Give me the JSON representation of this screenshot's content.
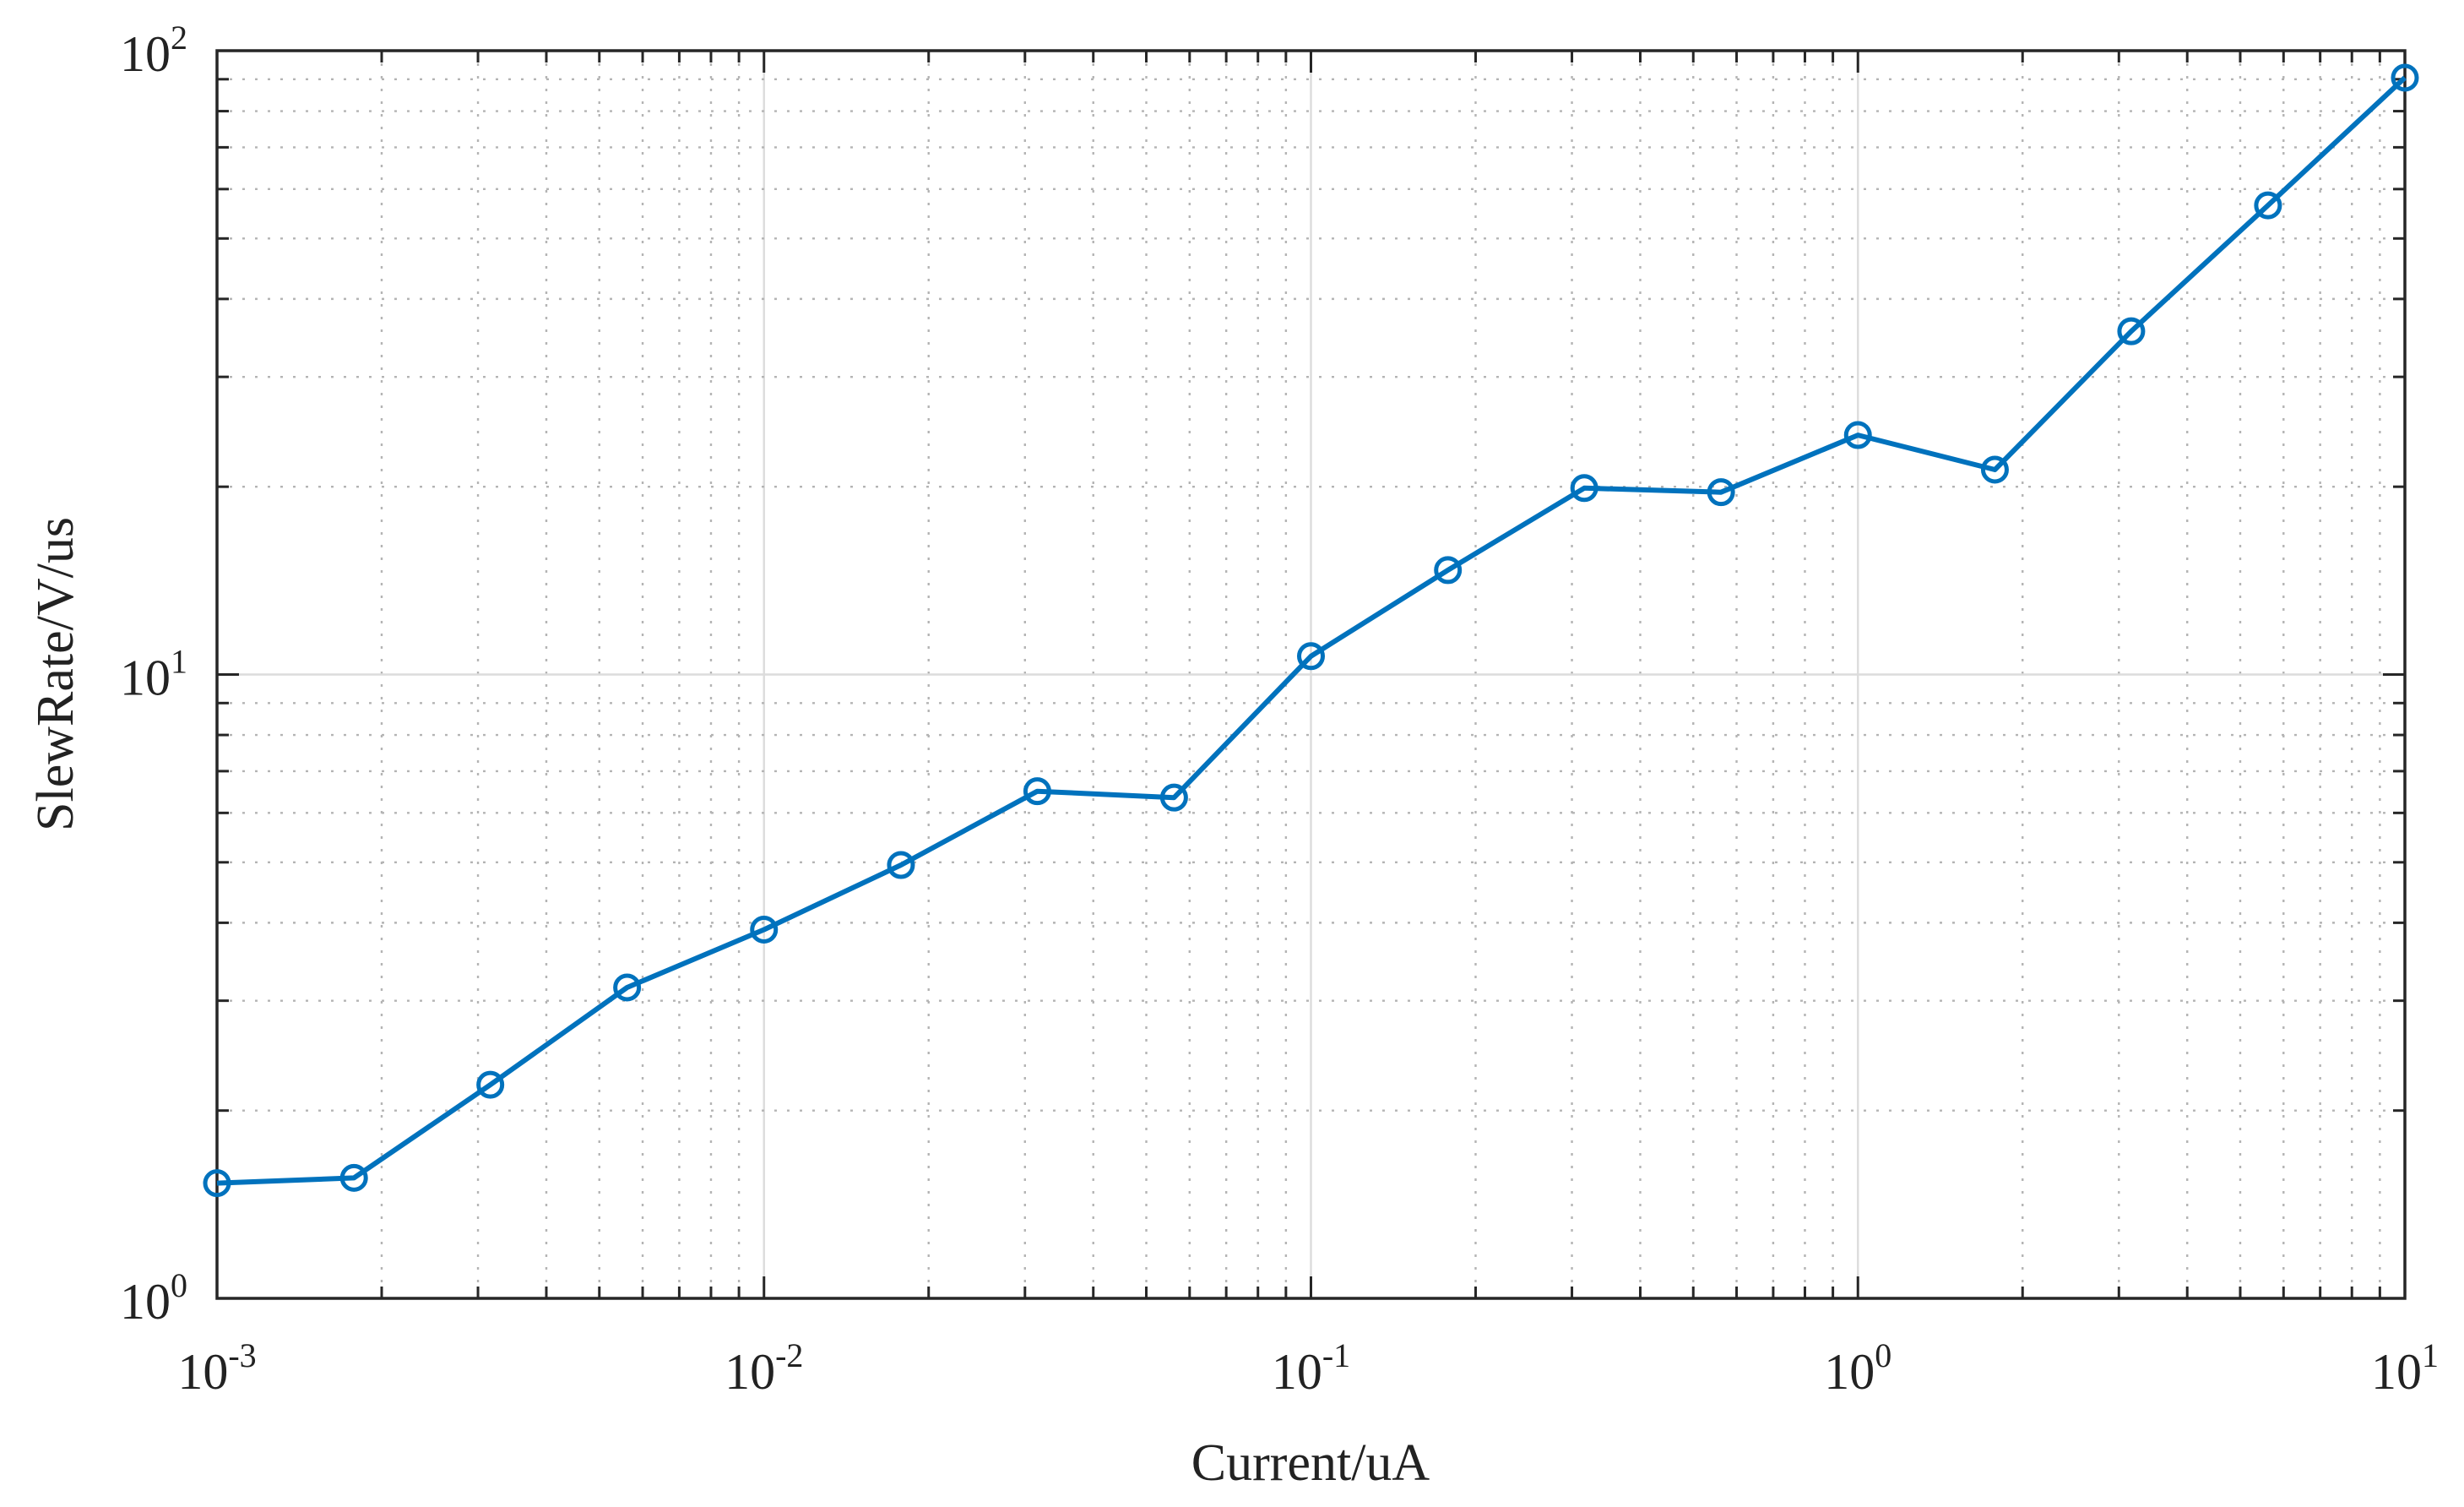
{
  "chart_data": {
    "type": "line",
    "xlabel": "Current/uA",
    "ylabel": "SlewRate/V/us",
    "x_scale": "log",
    "y_scale": "log",
    "xlim": [
      0.001,
      10
    ],
    "ylim": [
      1,
      100
    ],
    "grid": true,
    "minor_grid": true,
    "x_ticks": [
      {
        "value": 0.001,
        "base": "10",
        "exp": "-3"
      },
      {
        "value": 0.01,
        "base": "10",
        "exp": "-2"
      },
      {
        "value": 0.1,
        "base": "10",
        "exp": "-1"
      },
      {
        "value": 1,
        "base": "10",
        "exp": "0"
      },
      {
        "value": 10,
        "base": "10",
        "exp": "1"
      }
    ],
    "y_ticks": [
      {
        "value": 1,
        "base": "10",
        "exp": "0"
      },
      {
        "value": 10,
        "base": "10",
        "exp": "1"
      },
      {
        "value": 100,
        "base": "10",
        "exp": "2"
      }
    ],
    "series": [
      {
        "color": "#0072BD",
        "marker": "circle",
        "x": [
          0.001,
          0.00178,
          0.00316,
          0.00562,
          0.01,
          0.0178,
          0.0316,
          0.0562,
          0.1,
          0.178,
          0.316,
          0.562,
          1,
          1.78,
          3.16,
          5.62,
          10
        ],
        "y": [
          1.53,
          1.56,
          2.2,
          3.15,
          3.9,
          4.95,
          6.5,
          6.35,
          10.7,
          14.7,
          19.9,
          19.6,
          24.2,
          21.3,
          35.5,
          56.5,
          90.5
        ]
      }
    ]
  }
}
